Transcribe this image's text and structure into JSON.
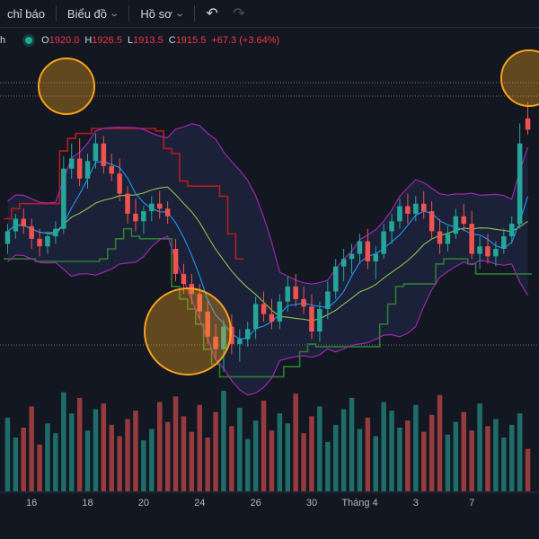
{
  "toolbar": {
    "indicators_label": "chỉ báo",
    "chart_label": "Biểu đồ",
    "profile_label": "Hồ sơ"
  },
  "legend": {
    "symbol_suffix": "h",
    "o_label": "O",
    "o_value": "1920.0",
    "h_label": "H",
    "h_value": "1926.5",
    "l_label": "L",
    "l_value": "1913.5",
    "c_label": "C",
    "c_value": "1915.5",
    "change": "+67.3 (+3.64%)"
  },
  "colors": {
    "background": "#131722",
    "up": "#26a69a",
    "down": "#ef5350",
    "bb_band": "#9c27b0",
    "bb_fill": "#1e2540",
    "ma_fast": "#2196f3",
    "ma_slow": "#8bc34a",
    "stop_green": "#2e7d32",
    "stop_red": "#b71c1c",
    "highlight": "#f7a21b"
  },
  "chart_data": {
    "type": "candlestick",
    "x_tick_labels": [
      "16",
      "18",
      "20",
      "24",
      "26",
      "30",
      "Tháng 4",
      "3",
      "7"
    ],
    "price_range": [
      1815,
      1945
    ],
    "candles": [
      [
        1870,
        1878,
        1866,
        1875
      ],
      [
        1875,
        1882,
        1872,
        1880
      ],
      [
        1880,
        1884,
        1874,
        1877
      ],
      [
        1877,
        1880,
        1868,
        1872
      ],
      [
        1872,
        1876,
        1865,
        1869
      ],
      [
        1869,
        1875,
        1866,
        1873
      ],
      [
        1873,
        1879,
        1870,
        1876
      ],
      [
        1876,
        1905,
        1874,
        1900
      ],
      [
        1900,
        1910,
        1896,
        1904
      ],
      [
        1904,
        1912,
        1893,
        1896
      ],
      [
        1896,
        1906,
        1892,
        1903
      ],
      [
        1903,
        1914,
        1900,
        1910
      ],
      [
        1910,
        1913,
        1898,
        1901
      ],
      [
        1901,
        1906,
        1895,
        1898
      ],
      [
        1898,
        1904,
        1887,
        1890
      ],
      [
        1890,
        1893,
        1878,
        1882
      ],
      [
        1882,
        1888,
        1875,
        1879
      ],
      [
        1879,
        1885,
        1874,
        1883
      ],
      [
        1883,
        1889,
        1879,
        1886
      ],
      [
        1886,
        1891,
        1880,
        1884
      ],
      [
        1884,
        1887,
        1878,
        1881
      ],
      [
        1868,
        1872,
        1855,
        1858
      ],
      [
        1858,
        1862,
        1850,
        1854
      ],
      [
        1854,
        1858,
        1846,
        1850
      ],
      [
        1850,
        1854,
        1840,
        1843
      ],
      [
        1843,
        1847,
        1830,
        1833
      ],
      [
        1833,
        1838,
        1824,
        1828
      ],
      [
        1828,
        1840,
        1819,
        1837
      ],
      [
        1837,
        1842,
        1826,
        1830
      ],
      [
        1830,
        1836,
        1823,
        1832
      ],
      [
        1832,
        1839,
        1829,
        1836
      ],
      [
        1836,
        1849,
        1832,
        1846
      ],
      [
        1846,
        1851,
        1839,
        1842
      ],
      [
        1842,
        1848,
        1836,
        1839
      ],
      [
        1839,
        1850,
        1836,
        1847
      ],
      [
        1847,
        1857,
        1843,
        1853
      ],
      [
        1853,
        1858,
        1845,
        1848
      ],
      [
        1848,
        1853,
        1842,
        1845
      ],
      [
        1845,
        1850,
        1832,
        1835
      ],
      [
        1835,
        1847,
        1831,
        1844
      ],
      [
        1844,
        1855,
        1840,
        1851
      ],
      [
        1851,
        1864,
        1848,
        1861
      ],
      [
        1861,
        1868,
        1855,
        1864
      ],
      [
        1864,
        1870,
        1858,
        1866
      ],
      [
        1866,
        1874,
        1862,
        1871
      ],
      [
        1871,
        1876,
        1860,
        1863
      ],
      [
        1863,
        1869,
        1856,
        1866
      ],
      [
        1866,
        1878,
        1864,
        1875
      ],
      [
        1875,
        1882,
        1870,
        1879
      ],
      [
        1879,
        1888,
        1876,
        1885
      ],
      [
        1885,
        1890,
        1878,
        1882
      ],
      [
        1882,
        1889,
        1879,
        1886
      ],
      [
        1886,
        1891,
        1880,
        1883
      ],
      [
        1883,
        1887,
        1872,
        1875
      ],
      [
        1875,
        1880,
        1866,
        1870
      ],
      [
        1870,
        1877,
        1867,
        1874
      ],
      [
        1874,
        1884,
        1872,
        1881
      ],
      [
        1881,
        1886,
        1875,
        1878
      ],
      [
        1878,
        1883,
        1864,
        1866
      ],
      [
        1866,
        1873,
        1860,
        1869
      ],
      [
        1869,
        1874,
        1862,
        1865
      ],
      [
        1865,
        1871,
        1861,
        1868
      ],
      [
        1868,
        1876,
        1866,
        1873
      ],
      [
        1873,
        1881,
        1870,
        1878
      ],
      [
        1878,
        1918,
        1876,
        1910
      ],
      [
        1920,
        1926.5,
        1913.5,
        1915.5
      ]
    ],
    "volumes": [
      52,
      38,
      45,
      60,
      33,
      48,
      41,
      70,
      55,
      66,
      43,
      58,
      62,
      47,
      39,
      51,
      57,
      36,
      44,
      63,
      49,
      67,
      53,
      42,
      61,
      38,
      56,
      71,
      46,
      59,
      37,
      50,
      64,
      43,
      55,
      48,
      69,
      41,
      53,
      60,
      35,
      47,
      58,
      66,
      44,
      52,
      39,
      63,
      57,
      45,
      50,
      61,
      42,
      54,
      68,
      40,
      49,
      56,
      43,
      62,
      46,
      51,
      38,
      47,
      55,
      30
    ]
  }
}
